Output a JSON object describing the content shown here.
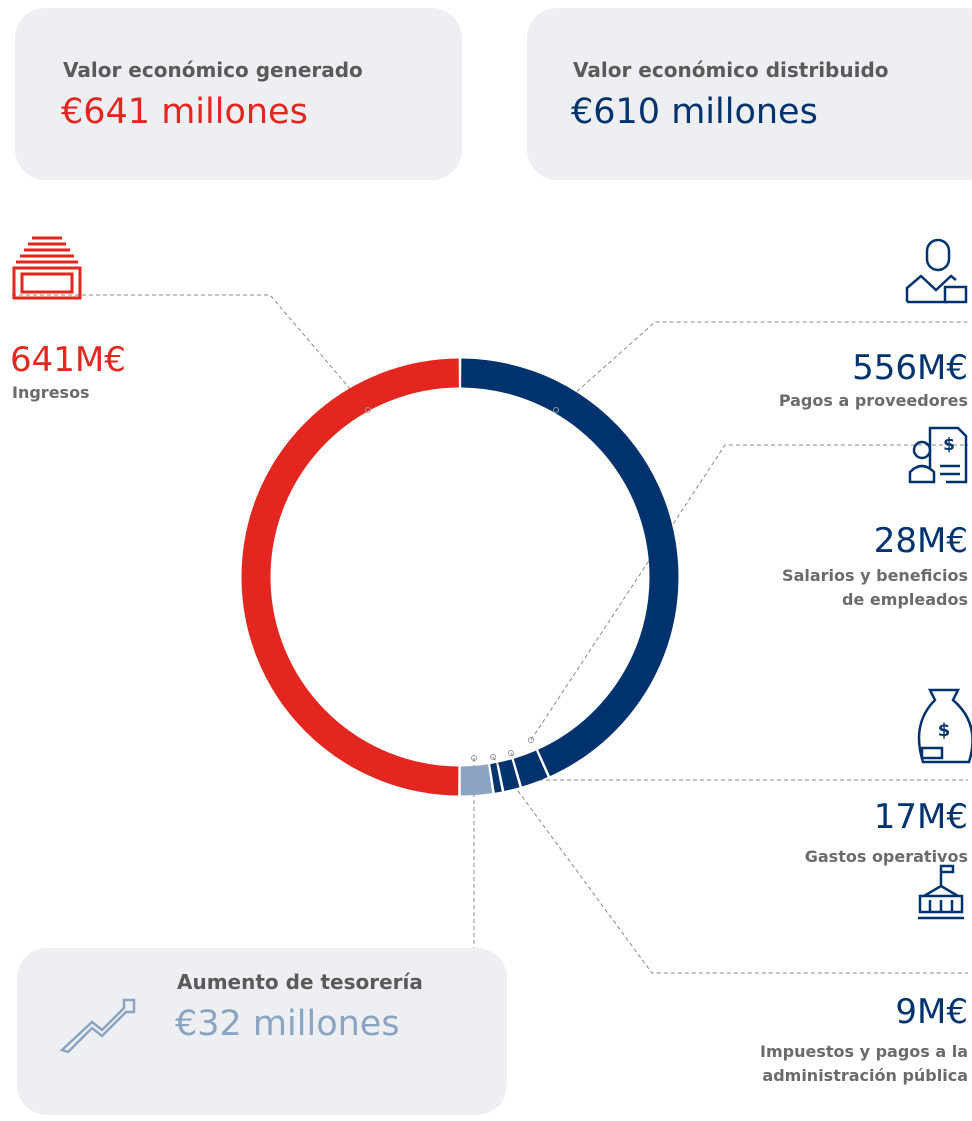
{
  "chart_data": {
    "type": "donut",
    "summary": [
      {
        "title": "Valor económico generado",
        "value": "€641 millones"
      },
      {
        "title": "Valor económico distribuido",
        "value": "€610 millones"
      }
    ],
    "categories": [
      "Ingresos",
      "Pagos a proveedores",
      "Salarios y beneficios de empleados",
      "Gastos operativos",
      "Impuestos y pagos a la administración pública",
      "Aumento de tesorería"
    ],
    "values": [
      641,
      556,
      28,
      17,
      9,
      32
    ],
    "value_labels": [
      "641M€",
      "556M€",
      "28M€",
      "17M€",
      "9M€",
      "€32 millones"
    ],
    "colors": [
      "#e3261f",
      "#00336e",
      "#00336e",
      "#00336e",
      "#00336e",
      "#8ba4c2"
    ],
    "summary_colors": [
      "#e3261f",
      "#00336e"
    ]
  }
}
